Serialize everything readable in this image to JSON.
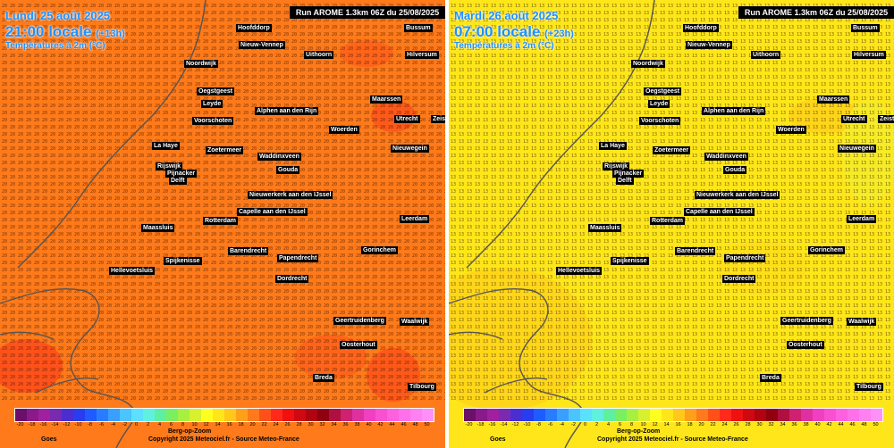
{
  "panels": [
    {
      "date": "Lundi 25 août 2025",
      "local_time": "21:00 locale",
      "lead": "(+13h)",
      "label": "Températures à 2m (°C)",
      "run": "Run AROME 1.3km 06Z du 25/08/2025",
      "field": {
        "base_value": 20,
        "base_color": "#ff7a1a"
      },
      "cities": [
        {
          "name": "Hoofddorp"
        },
        {
          "name": "Nieuw-Vennep"
        },
        {
          "name": "Uithoorn"
        },
        {
          "name": "Hilversum"
        },
        {
          "name": "Noordwijk"
        },
        {
          "name": "Oegstgeest"
        },
        {
          "name": "Leyde"
        },
        {
          "name": "Alphen aan den Rijn"
        },
        {
          "name": "Maarssen"
        },
        {
          "name": "Voorschoten"
        },
        {
          "name": "Utrecht"
        },
        {
          "name": "Zeist"
        },
        {
          "name": "Woerden"
        },
        {
          "name": "La Haye"
        },
        {
          "name": "Zoetermeer"
        },
        {
          "name": "Nieuwegein"
        },
        {
          "name": "Waddinxveen"
        },
        {
          "name": "Rijswijk"
        },
        {
          "name": "Gouda"
        },
        {
          "name": "Pijnacker"
        },
        {
          "name": "Delft"
        },
        {
          "name": "Nieuwerkerk aan den IJssel"
        },
        {
          "name": "Capelle aan den IJssel"
        },
        {
          "name": "Rotterdam"
        },
        {
          "name": "Leerdam"
        },
        {
          "name": "Maassluis"
        },
        {
          "name": "Barendrecht"
        },
        {
          "name": "Gorinchem"
        },
        {
          "name": "Spijkenisse"
        },
        {
          "name": "Papendrecht"
        },
        {
          "name": "Hellevoetsluis"
        },
        {
          "name": "Dordrecht"
        },
        {
          "name": "Geertruidenberg"
        },
        {
          "name": "Waalwijk"
        },
        {
          "name": "Oosterhout"
        },
        {
          "name": "Breda"
        },
        {
          "name": "Tilbourg"
        },
        {
          "name": "Bussum"
        }
      ]
    },
    {
      "date": "Mardi 26 août 2025",
      "local_time": "07:00 locale",
      "lead": "(+23h)",
      "label": "Températures à 2m (°C)",
      "run": "Run AROME 1.3km 06Z du 25/08/2025",
      "field": {
        "base_value": 13,
        "base_color": "#ffe61a"
      },
      "cities": [
        {
          "name": "Hoofddorp"
        },
        {
          "name": "Nieuw-Vennep"
        },
        {
          "name": "Uithoorn"
        },
        {
          "name": "Hilversum"
        },
        {
          "name": "Noordwijk"
        },
        {
          "name": "Oegstgeest"
        },
        {
          "name": "Leyde"
        },
        {
          "name": "Alphen aan den Rijn"
        },
        {
          "name": "Maarssen"
        },
        {
          "name": "Voorschoten"
        },
        {
          "name": "Utrecht"
        },
        {
          "name": "Zeist"
        },
        {
          "name": "Woerden"
        },
        {
          "name": "La Haye"
        },
        {
          "name": "Zoetermeer"
        },
        {
          "name": "Nieuwegein"
        },
        {
          "name": "Waddinxveen"
        },
        {
          "name": "Rijswijk"
        },
        {
          "name": "Gouda"
        },
        {
          "name": "Pijnacker"
        },
        {
          "name": "Delft"
        },
        {
          "name": "Nieuwerkerk aan den IJssel"
        },
        {
          "name": "Capelle aan den IJssel"
        },
        {
          "name": "Rotterdam"
        },
        {
          "name": "Leerdam"
        },
        {
          "name": "Maassluis"
        },
        {
          "name": "Barendrecht"
        },
        {
          "name": "Gorinchem"
        },
        {
          "name": "Spijkenisse"
        },
        {
          "name": "Papendrecht"
        },
        {
          "name": "Hellevoetsluis"
        },
        {
          "name": "Dordrecht"
        },
        {
          "name": "Geertruidenberg"
        },
        {
          "name": "Waalwijk"
        },
        {
          "name": "Oosterhout"
        },
        {
          "name": "Breda"
        },
        {
          "name": "Tilbourg"
        },
        {
          "name": "Bussum"
        }
      ]
    }
  ],
  "legend": {
    "values": [
      "-20",
      "-18",
      "-16",
      "-14",
      "-12",
      "-10",
      "-8",
      "-6",
      "-4",
      "-2",
      "0",
      "2",
      "4",
      "6",
      "8",
      "10",
      "12",
      "14",
      "16",
      "18",
      "20",
      "22",
      "24",
      "26",
      "28",
      "30",
      "32",
      "34",
      "36",
      "38",
      "40",
      "42",
      "44",
      "46",
      "48",
      "50"
    ],
    "colors": [
      "#6b0f6b",
      "#8a1a8a",
      "#a020a0",
      "#7a2ab0",
      "#4b2ed0",
      "#2a3cf0",
      "#1e5cff",
      "#2a7cff",
      "#3aa0ff",
      "#4cc4ff",
      "#5ce0ff",
      "#60f0e0",
      "#5ef0a0",
      "#7af060",
      "#a8f040",
      "#d8f030",
      "#ffff20",
      "#ffe61a",
      "#ffc81a",
      "#ffa01a",
      "#ff7a1a",
      "#ff501a",
      "#ff2a1a",
      "#f01010",
      "#d00810",
      "#b00410",
      "#900010",
      "#b01040",
      "#d02070",
      "#e030a0",
      "#f040c0",
      "#f850d0",
      "#ff60e0",
      "#ff70ea",
      "#ff80f0",
      "#ff90f8"
    ]
  },
  "footer": {
    "left_text": "Goes",
    "bz_text": "Berg-op-Zoom",
    "copyright": "Copyright 2025 Meteociel.fr - Source Meteo-France"
  }
}
